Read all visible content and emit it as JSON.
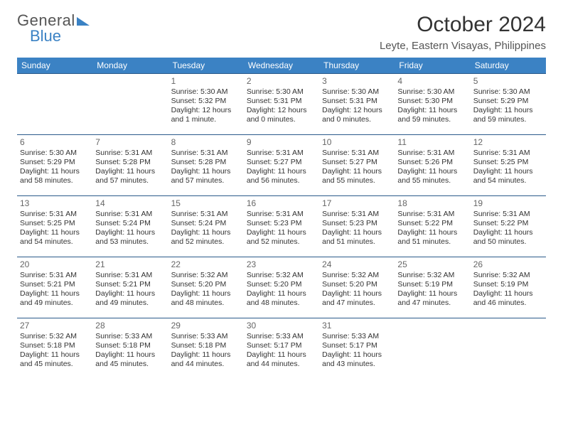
{
  "logo": {
    "line1": "General",
    "line2": "Blue"
  },
  "header": {
    "month_title": "October 2024",
    "location": "Leyte, Eastern Visayas, Philippines"
  },
  "calendar": {
    "day_headers": [
      "Sunday",
      "Monday",
      "Tuesday",
      "Wednesday",
      "Thursday",
      "Friday",
      "Saturday"
    ],
    "header_bg": "#3b82c4",
    "header_fg": "#ffffff",
    "row_border": "#2a5a8a",
    "weeks": [
      [
        {
          "n": "",
          "sr": "",
          "ss": "",
          "dl": ""
        },
        {
          "n": "",
          "sr": "",
          "ss": "",
          "dl": ""
        },
        {
          "n": "1",
          "sr": "Sunrise: 5:30 AM",
          "ss": "Sunset: 5:32 PM",
          "dl": "Daylight: 12 hours and 1 minute."
        },
        {
          "n": "2",
          "sr": "Sunrise: 5:30 AM",
          "ss": "Sunset: 5:31 PM",
          "dl": "Daylight: 12 hours and 0 minutes."
        },
        {
          "n": "3",
          "sr": "Sunrise: 5:30 AM",
          "ss": "Sunset: 5:31 PM",
          "dl": "Daylight: 12 hours and 0 minutes."
        },
        {
          "n": "4",
          "sr": "Sunrise: 5:30 AM",
          "ss": "Sunset: 5:30 PM",
          "dl": "Daylight: 11 hours and 59 minutes."
        },
        {
          "n": "5",
          "sr": "Sunrise: 5:30 AM",
          "ss": "Sunset: 5:29 PM",
          "dl": "Daylight: 11 hours and 59 minutes."
        }
      ],
      [
        {
          "n": "6",
          "sr": "Sunrise: 5:30 AM",
          "ss": "Sunset: 5:29 PM",
          "dl": "Daylight: 11 hours and 58 minutes."
        },
        {
          "n": "7",
          "sr": "Sunrise: 5:31 AM",
          "ss": "Sunset: 5:28 PM",
          "dl": "Daylight: 11 hours and 57 minutes."
        },
        {
          "n": "8",
          "sr": "Sunrise: 5:31 AM",
          "ss": "Sunset: 5:28 PM",
          "dl": "Daylight: 11 hours and 57 minutes."
        },
        {
          "n": "9",
          "sr": "Sunrise: 5:31 AM",
          "ss": "Sunset: 5:27 PM",
          "dl": "Daylight: 11 hours and 56 minutes."
        },
        {
          "n": "10",
          "sr": "Sunrise: 5:31 AM",
          "ss": "Sunset: 5:27 PM",
          "dl": "Daylight: 11 hours and 55 minutes."
        },
        {
          "n": "11",
          "sr": "Sunrise: 5:31 AM",
          "ss": "Sunset: 5:26 PM",
          "dl": "Daylight: 11 hours and 55 minutes."
        },
        {
          "n": "12",
          "sr": "Sunrise: 5:31 AM",
          "ss": "Sunset: 5:25 PM",
          "dl": "Daylight: 11 hours and 54 minutes."
        }
      ],
      [
        {
          "n": "13",
          "sr": "Sunrise: 5:31 AM",
          "ss": "Sunset: 5:25 PM",
          "dl": "Daylight: 11 hours and 54 minutes."
        },
        {
          "n": "14",
          "sr": "Sunrise: 5:31 AM",
          "ss": "Sunset: 5:24 PM",
          "dl": "Daylight: 11 hours and 53 minutes."
        },
        {
          "n": "15",
          "sr": "Sunrise: 5:31 AM",
          "ss": "Sunset: 5:24 PM",
          "dl": "Daylight: 11 hours and 52 minutes."
        },
        {
          "n": "16",
          "sr": "Sunrise: 5:31 AM",
          "ss": "Sunset: 5:23 PM",
          "dl": "Daylight: 11 hours and 52 minutes."
        },
        {
          "n": "17",
          "sr": "Sunrise: 5:31 AM",
          "ss": "Sunset: 5:23 PM",
          "dl": "Daylight: 11 hours and 51 minutes."
        },
        {
          "n": "18",
          "sr": "Sunrise: 5:31 AM",
          "ss": "Sunset: 5:22 PM",
          "dl": "Daylight: 11 hours and 51 minutes."
        },
        {
          "n": "19",
          "sr": "Sunrise: 5:31 AM",
          "ss": "Sunset: 5:22 PM",
          "dl": "Daylight: 11 hours and 50 minutes."
        }
      ],
      [
        {
          "n": "20",
          "sr": "Sunrise: 5:31 AM",
          "ss": "Sunset: 5:21 PM",
          "dl": "Daylight: 11 hours and 49 minutes."
        },
        {
          "n": "21",
          "sr": "Sunrise: 5:31 AM",
          "ss": "Sunset: 5:21 PM",
          "dl": "Daylight: 11 hours and 49 minutes."
        },
        {
          "n": "22",
          "sr": "Sunrise: 5:32 AM",
          "ss": "Sunset: 5:20 PM",
          "dl": "Daylight: 11 hours and 48 minutes."
        },
        {
          "n": "23",
          "sr": "Sunrise: 5:32 AM",
          "ss": "Sunset: 5:20 PM",
          "dl": "Daylight: 11 hours and 48 minutes."
        },
        {
          "n": "24",
          "sr": "Sunrise: 5:32 AM",
          "ss": "Sunset: 5:20 PM",
          "dl": "Daylight: 11 hours and 47 minutes."
        },
        {
          "n": "25",
          "sr": "Sunrise: 5:32 AM",
          "ss": "Sunset: 5:19 PM",
          "dl": "Daylight: 11 hours and 47 minutes."
        },
        {
          "n": "26",
          "sr": "Sunrise: 5:32 AM",
          "ss": "Sunset: 5:19 PM",
          "dl": "Daylight: 11 hours and 46 minutes."
        }
      ],
      [
        {
          "n": "27",
          "sr": "Sunrise: 5:32 AM",
          "ss": "Sunset: 5:18 PM",
          "dl": "Daylight: 11 hours and 45 minutes."
        },
        {
          "n": "28",
          "sr": "Sunrise: 5:33 AM",
          "ss": "Sunset: 5:18 PM",
          "dl": "Daylight: 11 hours and 45 minutes."
        },
        {
          "n": "29",
          "sr": "Sunrise: 5:33 AM",
          "ss": "Sunset: 5:18 PM",
          "dl": "Daylight: 11 hours and 44 minutes."
        },
        {
          "n": "30",
          "sr": "Sunrise: 5:33 AM",
          "ss": "Sunset: 5:17 PM",
          "dl": "Daylight: 11 hours and 44 minutes."
        },
        {
          "n": "31",
          "sr": "Sunrise: 5:33 AM",
          "ss": "Sunset: 5:17 PM",
          "dl": "Daylight: 11 hours and 43 minutes."
        },
        {
          "n": "",
          "sr": "",
          "ss": "",
          "dl": ""
        },
        {
          "n": "",
          "sr": "",
          "ss": "",
          "dl": ""
        }
      ]
    ]
  }
}
